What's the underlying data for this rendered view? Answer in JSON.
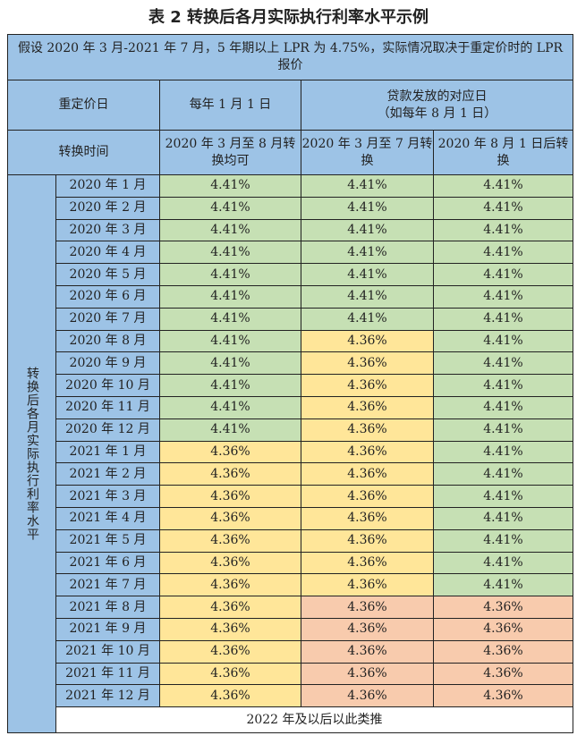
{
  "title": "表 2  转换后各月实际执行利率水平示例",
  "assumption": "假设 2020 年 3 月-2021 年 7 月，5 年期以上 LPR 为 4.75%，实际情况取决于重定价时的 LPR 报价",
  "header": {
    "reprice_label": "重定价日",
    "reprice_col1": "每年 1 月 1 日",
    "reprice_col2": "贷款发放的对应日\n（如每年 8 月 1 日）",
    "convert_label": "转换时间",
    "convert_col1": "2020 年 3 月至 8 月转换均可",
    "convert_col2": "2020 年 3 月至 7 月转换",
    "convert_col3": "2020 年 8 月 1 日后转换"
  },
  "side_label": "转换后各月实际执行利率水平",
  "colors": {
    "header_blue": "#9dc3e6",
    "green": "#c6e0b4",
    "yellow": "#ffe699",
    "salmon": "#f8cbad"
  },
  "rows": [
    {
      "month": "2020 年 1 月",
      "v": [
        "4.41%",
        "4.41%",
        "4.41%"
      ],
      "c": [
        "g",
        "g",
        "g"
      ]
    },
    {
      "month": "2020 年 2 月",
      "v": [
        "4.41%",
        "4.41%",
        "4.41%"
      ],
      "c": [
        "g",
        "g",
        "g"
      ]
    },
    {
      "month": "2020 年 3 月",
      "v": [
        "4.41%",
        "4.41%",
        "4.41%"
      ],
      "c": [
        "g",
        "g",
        "g"
      ]
    },
    {
      "month": "2020 年 4 月",
      "v": [
        "4.41%",
        "4.41%",
        "4.41%"
      ],
      "c": [
        "g",
        "g",
        "g"
      ]
    },
    {
      "month": "2020 年 5 月",
      "v": [
        "4.41%",
        "4.41%",
        "4.41%"
      ],
      "c": [
        "g",
        "g",
        "g"
      ]
    },
    {
      "month": "2020 年 6 月",
      "v": [
        "4.41%",
        "4.41%",
        "4.41%"
      ],
      "c": [
        "g",
        "g",
        "g"
      ]
    },
    {
      "month": "2020 年 7 月",
      "v": [
        "4.41%",
        "4.41%",
        "4.41%"
      ],
      "c": [
        "g",
        "g",
        "g"
      ]
    },
    {
      "month": "2020 年 8 月",
      "v": [
        "4.41%",
        "4.36%",
        "4.41%"
      ],
      "c": [
        "g",
        "y",
        "g"
      ]
    },
    {
      "month": "2020 年 9 月",
      "v": [
        "4.41%",
        "4.36%",
        "4.41%"
      ],
      "c": [
        "g",
        "y",
        "g"
      ]
    },
    {
      "month": "2020 年 10 月",
      "v": [
        "4.41%",
        "4.36%",
        "4.41%"
      ],
      "c": [
        "g",
        "y",
        "g"
      ]
    },
    {
      "month": "2020 年 11 月",
      "v": [
        "4.41%",
        "4.36%",
        "4.41%"
      ],
      "c": [
        "g",
        "y",
        "g"
      ]
    },
    {
      "month": "2020 年 12 月",
      "v": [
        "4.41%",
        "4.36%",
        "4.41%"
      ],
      "c": [
        "g",
        "y",
        "g"
      ]
    },
    {
      "month": "2021 年 1 月",
      "v": [
        "4.36%",
        "4.36%",
        "4.41%"
      ],
      "c": [
        "y",
        "y",
        "g"
      ]
    },
    {
      "month": "2021 年 2 月",
      "v": [
        "4.36%",
        "4.36%",
        "4.41%"
      ],
      "c": [
        "y",
        "y",
        "g"
      ]
    },
    {
      "month": "2021 年 3 月",
      "v": [
        "4.36%",
        "4.36%",
        "4.41%"
      ],
      "c": [
        "y",
        "y",
        "g"
      ]
    },
    {
      "month": "2021 年 4 月",
      "v": [
        "4.36%",
        "4.36%",
        "4.41%"
      ],
      "c": [
        "y",
        "y",
        "g"
      ]
    },
    {
      "month": "2021 年 5 月",
      "v": [
        "4.36%",
        "4.36%",
        "4.41%"
      ],
      "c": [
        "y",
        "y",
        "g"
      ]
    },
    {
      "month": "2021 年 6 月",
      "v": [
        "4.36%",
        "4.36%",
        "4.41%"
      ],
      "c": [
        "y",
        "y",
        "g"
      ]
    },
    {
      "month": "2021 年 7 月",
      "v": [
        "4.36%",
        "4.36%",
        "4.41%"
      ],
      "c": [
        "y",
        "y",
        "g"
      ]
    },
    {
      "month": "2021 年 8 月",
      "v": [
        "4.36%",
        "4.36%",
        "4.36%"
      ],
      "c": [
        "y",
        "s",
        "s"
      ]
    },
    {
      "month": "2021 年 9 月",
      "v": [
        "4.36%",
        "4.36%",
        "4.36%"
      ],
      "c": [
        "y",
        "s",
        "s"
      ]
    },
    {
      "month": "2021 年 10 月",
      "v": [
        "4.36%",
        "4.36%",
        "4.36%"
      ],
      "c": [
        "y",
        "s",
        "s"
      ]
    },
    {
      "month": "2021 年 11 月",
      "v": [
        "4.36%",
        "4.36%",
        "4.36%"
      ],
      "c": [
        "y",
        "s",
        "s"
      ]
    },
    {
      "month": "2021 年 12 月",
      "v": [
        "4.36%",
        "4.36%",
        "4.36%"
      ],
      "c": [
        "y",
        "s",
        "s"
      ]
    }
  ],
  "footer": "2022 年及以后以此类推"
}
